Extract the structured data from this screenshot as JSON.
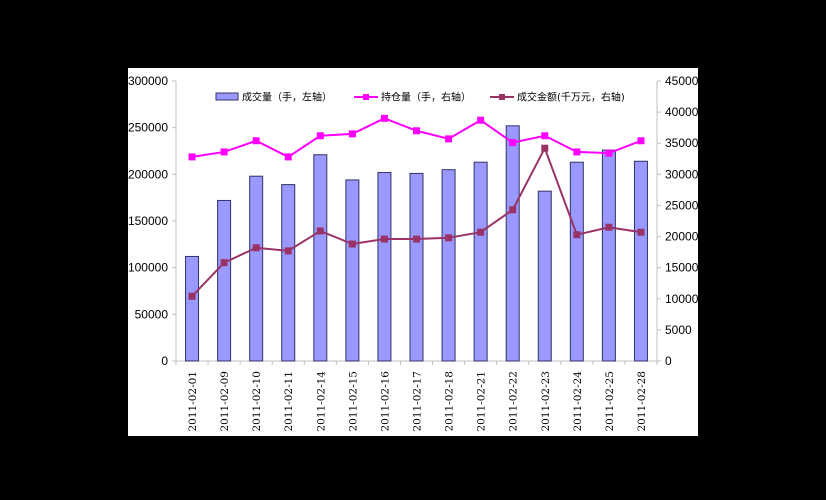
{
  "chart_data": {
    "type": "bar",
    "title": "",
    "xlabel": "",
    "ylabel": "",
    "categories": [
      "2011-02-01",
      "2011-02-09",
      "2011-02-10",
      "2011-02-11",
      "2011-02-14",
      "2011-02-15",
      "2011-02-16",
      "2011-02-17",
      "2011-02-18",
      "2011-02-21",
      "2011-02-22",
      "2011-02-23",
      "2011-02-24",
      "2011-02-25",
      "2011-02-28"
    ],
    "series": [
      {
        "name": "成交量（手，左轴）",
        "type": "bar",
        "axis": "left",
        "color": "#9999FF",
        "values": [
          112000,
          172000,
          198000,
          189000,
          221000,
          194000,
          202000,
          201000,
          205000,
          213000,
          252000,
          182000,
          213000,
          226000,
          214000
        ]
      },
      {
        "name": "持仓量（手，右轴）",
        "type": "line",
        "axis": "right",
        "color": "#FF00FF",
        "values": [
          32800,
          33600,
          35400,
          32800,
          36200,
          36500,
          39000,
          37000,
          35700,
          38700,
          35100,
          36200,
          33600,
          33400,
          35400
        ]
      },
      {
        "name": "成交金额(千万元，右轴)",
        "type": "line",
        "axis": "right",
        "color": "#993366",
        "values": [
          10400,
          15800,
          18200,
          17700,
          20900,
          18800,
          19600,
          19600,
          19800,
          20700,
          24300,
          34200,
          20300,
          21500,
          20700
        ]
      }
    ],
    "left_axis": {
      "ylim": [
        0,
        300000
      ],
      "ticks": [
        "0",
        "50000",
        "100000",
        "150000",
        "200000",
        "250000",
        "300000"
      ]
    },
    "right_axis": {
      "ylim": [
        0,
        45000
      ],
      "ticks": [
        "0",
        "5000",
        "10000",
        "15000",
        "20000",
        "25000",
        "30000",
        "35000",
        "40000",
        "45000"
      ]
    },
    "legend_position": "top",
    "grid": false
  }
}
